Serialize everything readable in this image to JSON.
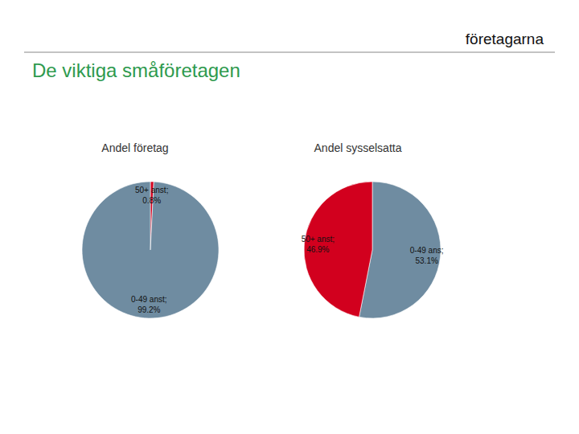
{
  "logo": "företagarna",
  "slide_title": "De viktiga småföretagen",
  "chart_data": [
    {
      "type": "pie",
      "title": "Andel företag",
      "categories": [
        "50+ anst;",
        "0-49 anst;"
      ],
      "values": [
        0.8,
        99.2
      ],
      "value_labels": [
        "0.8%",
        "99.2%"
      ],
      "colors": [
        "#d2001e",
        "#6f8ca1"
      ],
      "data_labels": true
    },
    {
      "type": "pie",
      "title": "Andel sysselsatta",
      "categories": [
        "0-49 ans;",
        "50+ anst;"
      ],
      "values": [
        53.1,
        46.9
      ],
      "value_labels": [
        "53.1%",
        "46.9%"
      ],
      "colors": [
        "#6f8ca1",
        "#d2001e"
      ],
      "data_labels": true
    }
  ]
}
